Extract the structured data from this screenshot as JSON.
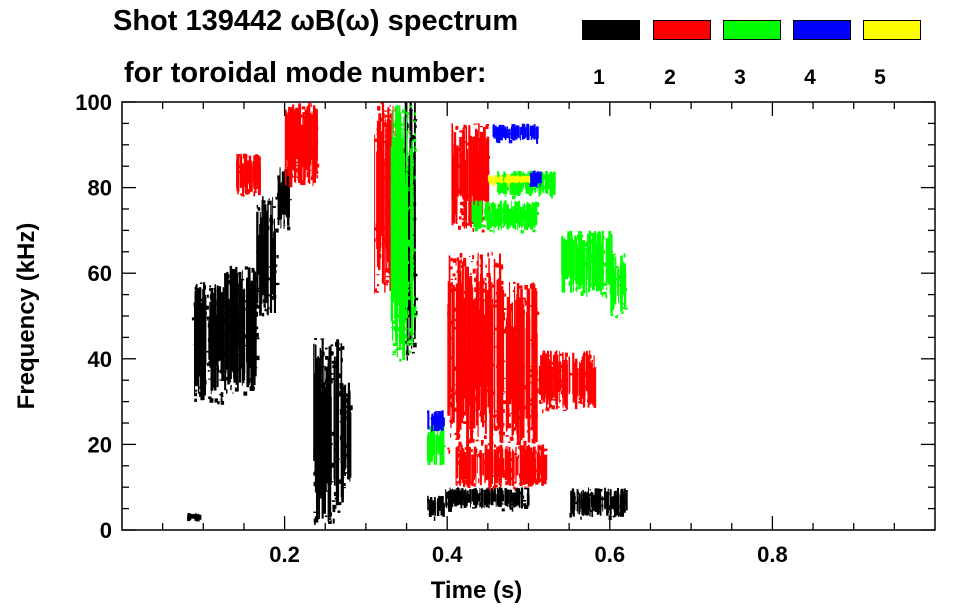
{
  "title": {
    "line1": "Shot 139442 ωB(ω) spectrum",
    "line2": "for toroidal mode number:"
  },
  "legend": [
    {
      "label": "1",
      "color": "#000000"
    },
    {
      "label": "2",
      "color": "#ff0000"
    },
    {
      "label": "3",
      "color": "#00ff00"
    },
    {
      "label": "4",
      "color": "#0000ff"
    },
    {
      "label": "5",
      "color": "#ffff00"
    }
  ],
  "chart_data": {
    "type": "heatmap",
    "xlabel": "Time (s)",
    "ylabel": "Frequency (kHz)",
    "xlim": [
      0.0,
      1.0
    ],
    "ylim": [
      0,
      100
    ],
    "xticks": [
      0.2,
      0.4,
      0.6,
      0.8
    ],
    "xtick_labels": [
      "0.2",
      "0.4",
      "0.6",
      "0.8"
    ],
    "yticks": [
      0,
      20,
      40,
      60,
      80,
      100
    ],
    "ytick_labels": [
      "0",
      "20",
      "40",
      "60",
      "80",
      "100"
    ],
    "grid": false,
    "regions": [
      {
        "mode": 1,
        "t0": 0.085,
        "t1": 0.125,
        "f0": 30,
        "f1": 58
      },
      {
        "mode": 1,
        "t0": 0.125,
        "t1": 0.165,
        "f0": 32,
        "f1": 62
      },
      {
        "mode": 1,
        "t0": 0.165,
        "t1": 0.19,
        "f0": 50,
        "f1": 78
      },
      {
        "mode": 1,
        "t0": 0.19,
        "t1": 0.205,
        "f0": 70,
        "f1": 85
      },
      {
        "mode": 1,
        "t0": 0.235,
        "t1": 0.27,
        "f0": 2,
        "f1": 45
      },
      {
        "mode": 1,
        "t0": 0.27,
        "t1": 0.28,
        "f0": 10,
        "f1": 35
      },
      {
        "mode": 1,
        "t0": 0.08,
        "t1": 0.095,
        "f0": 2,
        "f1": 4
      },
      {
        "mode": 1,
        "t0": 0.345,
        "t1": 0.36,
        "f0": 40,
        "f1": 100
      },
      {
        "mode": 1,
        "t0": 0.375,
        "t1": 0.395,
        "f0": 3,
        "f1": 8
      },
      {
        "mode": 1,
        "t0": 0.395,
        "t1": 0.5,
        "f0": 5,
        "f1": 10
      },
      {
        "mode": 1,
        "t0": 0.55,
        "t1": 0.62,
        "f0": 3,
        "f1": 10
      },
      {
        "mode": 2,
        "t0": 0.4,
        "t1": 0.465,
        "f0": 18,
        "f1": 65
      },
      {
        "mode": 2,
        "t0": 0.465,
        "t1": 0.51,
        "f0": 20,
        "f1": 58
      },
      {
        "mode": 2,
        "t0": 0.51,
        "t1": 0.58,
        "f0": 28,
        "f1": 42
      },
      {
        "mode": 2,
        "t0": 0.405,
        "t1": 0.45,
        "f0": 70,
        "f1": 95
      },
      {
        "mode": 2,
        "t0": 0.2,
        "t1": 0.24,
        "f0": 80,
        "f1": 100
      },
      {
        "mode": 2,
        "t0": 0.14,
        "t1": 0.17,
        "f0": 78,
        "f1": 88
      },
      {
        "mode": 2,
        "t0": 0.31,
        "t1": 0.34,
        "f0": 55,
        "f1": 100
      },
      {
        "mode": 2,
        "t0": 0.41,
        "t1": 0.52,
        "f0": 10,
        "f1": 20
      },
      {
        "mode": 3,
        "t0": 0.43,
        "t1": 0.51,
        "f0": 70,
        "f1": 77
      },
      {
        "mode": 3,
        "t0": 0.54,
        "t1": 0.6,
        "f0": 55,
        "f1": 70
      },
      {
        "mode": 3,
        "t0": 0.6,
        "t1": 0.62,
        "f0": 50,
        "f1": 65
      },
      {
        "mode": 3,
        "t0": 0.33,
        "t1": 0.36,
        "f0": 40,
        "f1": 100
      },
      {
        "mode": 3,
        "t0": 0.375,
        "t1": 0.395,
        "f0": 15,
        "f1": 25
      },
      {
        "mode": 3,
        "t0": 0.46,
        "t1": 0.53,
        "f0": 78,
        "f1": 84
      },
      {
        "mode": 4,
        "t0": 0.455,
        "t1": 0.51,
        "f0": 91,
        "f1": 95
      },
      {
        "mode": 4,
        "t0": 0.375,
        "t1": 0.395,
        "f0": 23,
        "f1": 28
      },
      {
        "mode": 4,
        "t0": 0.5,
        "t1": 0.515,
        "f0": 80,
        "f1": 84
      },
      {
        "mode": 5,
        "t0": 0.45,
        "t1": 0.5,
        "f0": 81,
        "f1": 83
      }
    ]
  }
}
